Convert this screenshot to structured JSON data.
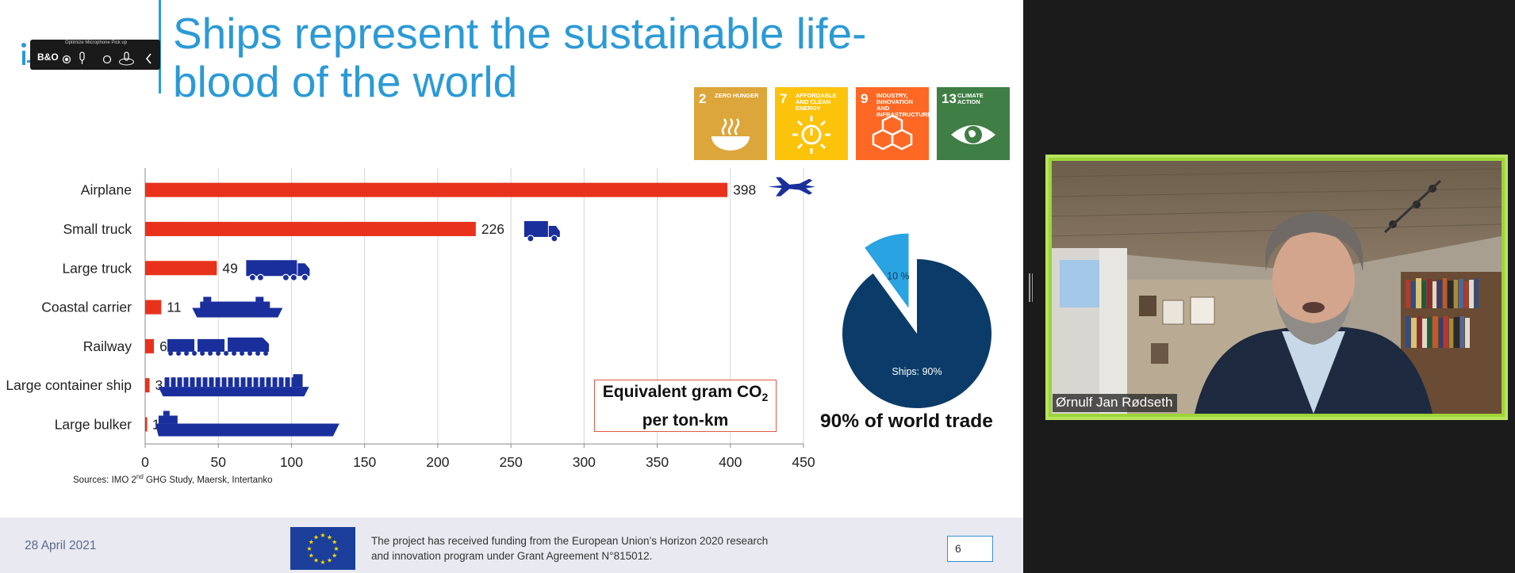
{
  "slide": {
    "title_line1": "Ships represent the sustainable life-",
    "title_line2": "blood of the world",
    "sources_prefix": "Sources: IMO 2",
    "sources_sup": "nd",
    "sources_suffix": " GHG Study, Maersk, Intertanko",
    "equiv_line1_prefix": "Equivalent gram CO",
    "equiv_line1_sub": "2",
    "equiv_line2": "per ton-km",
    "trade_caption": "90% of world trade"
  },
  "mic_widget": {
    "title": "Optimize Microphone Pick up",
    "brand": "B&O"
  },
  "sdg_tiles": [
    {
      "number": "2",
      "label": "ZERO HUNGER",
      "color": "#dda63a",
      "icon": "bowl-icon"
    },
    {
      "number": "7",
      "label": "AFFORDABLE AND CLEAN ENERGY",
      "color": "#fcc30b",
      "icon": "sun-power-icon"
    },
    {
      "number": "9",
      "label": "INDUSTRY, INNOVATION AND INFRASTRUCTURE",
      "color": "#fd6925",
      "icon": "cubes-icon"
    },
    {
      "number": "13",
      "label": "CLIMATE ACTION",
      "color": "#3f7e44",
      "icon": "eye-globe-icon"
    }
  ],
  "chart_data": [
    {
      "type": "bar",
      "orientation": "horizontal",
      "categories": [
        "Airplane",
        "Small truck",
        "Large truck",
        "Coastal carrier",
        "Railway",
        "Large container ship",
        "Large bulker"
      ],
      "values": [
        398,
        226,
        49,
        11,
        6,
        3,
        1
      ],
      "xlim": [
        0,
        450
      ],
      "xticks": [
        0,
        50,
        100,
        150,
        200,
        250,
        300,
        350,
        400,
        450
      ],
      "grid": "vertical",
      "bar_color": "#e8321c",
      "icons": [
        "airplane-icon",
        "truck-icon",
        "lorry-icon",
        "coastal-ship-icon",
        "train-icon",
        "container-ship-icon",
        "bulker-ship-icon"
      ],
      "icon_color": "#1a2f9c"
    },
    {
      "type": "pie",
      "slices": [
        {
          "label": "10 %",
          "value": 10,
          "color": "#29a3e1",
          "exploded": true
        },
        {
          "label": "Ships: 90%",
          "value": 90,
          "color": "#0b3c69"
        }
      ]
    }
  ],
  "footer": {
    "date": "28 April 2021",
    "funding_line1": "The project has received funding from the European Union’s Horizon 2020 research",
    "funding_line2": "and innovation program under Grant Agreement N°815012.",
    "page_number": "6"
  },
  "video": {
    "participant_name": "Ørnulf Jan Rødseth"
  }
}
